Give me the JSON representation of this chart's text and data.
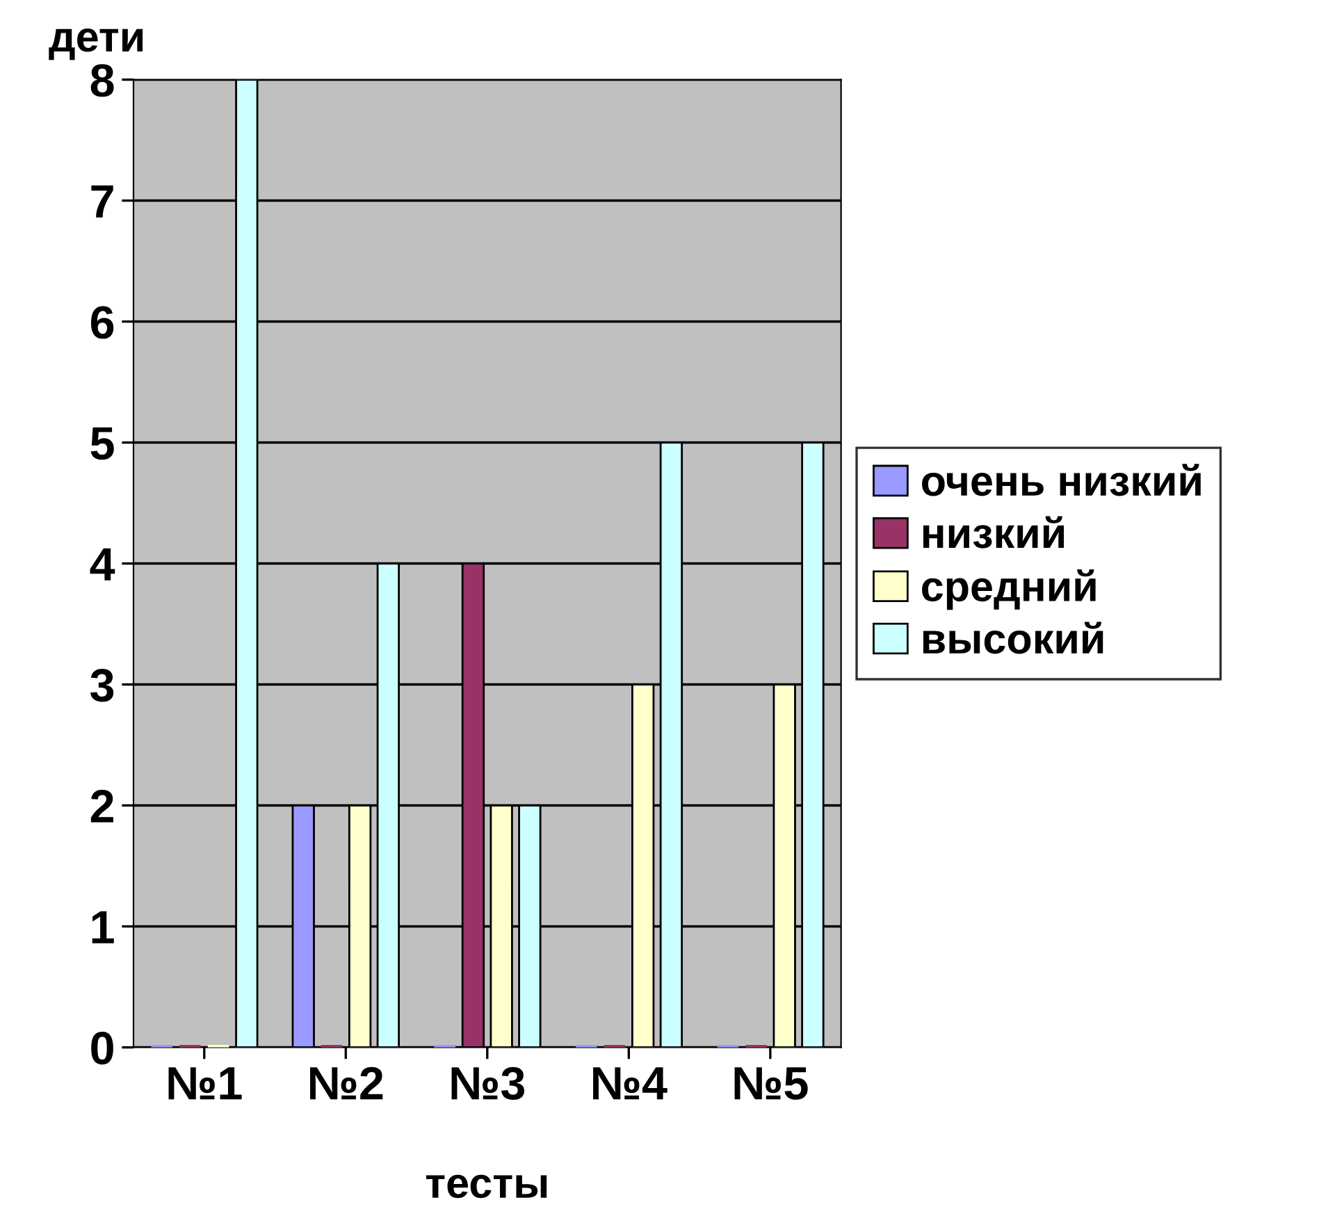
{
  "chart_data": {
    "type": "bar",
    "ylabel": "дети",
    "xlabel": "тесты",
    "categories": [
      "№1",
      "№2",
      "№3",
      "№4",
      "№5"
    ],
    "series": [
      {
        "name": "очень низкий",
        "color": "#9999ff",
        "values": [
          0,
          2,
          0,
          0,
          0
        ]
      },
      {
        "name": "низкий",
        "color": "#993366",
        "values": [
          0,
          0,
          4,
          0,
          0
        ]
      },
      {
        "name": "средний",
        "color": "#ffffcc",
        "values": [
          0,
          2,
          2,
          3,
          3
        ]
      },
      {
        "name": "высокий",
        "color": "#ccffff",
        "values": [
          8,
          4,
          2,
          5,
          5
        ]
      }
    ],
    "ylim": [
      0,
      8
    ],
    "yticks": [
      0,
      1,
      2,
      3,
      4,
      5,
      6,
      7,
      8
    ],
    "grid": "y",
    "legend": "right"
  }
}
